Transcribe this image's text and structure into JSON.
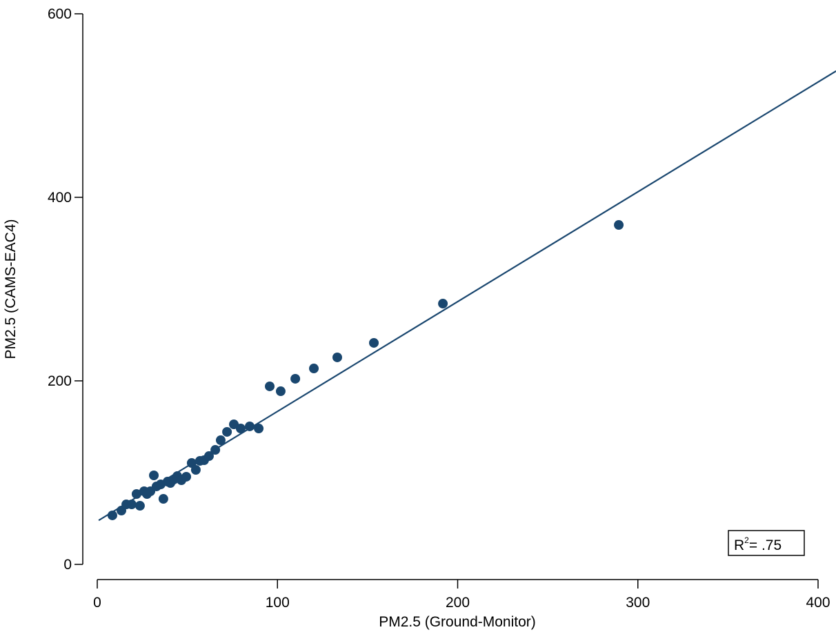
{
  "chart_data": {
    "type": "scatter",
    "xlabel": "PM2.5 (Ground-Monitor)",
    "ylabel": "PM2.5 (CAMS-EAC4)",
    "annotation": "R²= .75",
    "color": "#1a476f",
    "x": [
      8.4,
      13.4,
      16.1,
      19.1,
      21.8,
      23.7,
      26,
      27.6,
      29.5,
      31.4,
      32.9,
      35.2,
      36.7,
      39,
      40.6,
      42.5,
      44.4,
      46.7,
      49.4,
      52.4,
      54.7,
      57,
      59.3,
      62,
      65.5,
      68.5,
      72,
      75.8,
      79.6,
      84.6,
      89.6,
      95.7,
      101.8,
      109.9,
      120.2,
      133.2,
      153.5,
      191.8,
      289.4
    ],
    "values": [
      53.4,
      58.6,
      65.4,
      65.4,
      76.7,
      63.9,
      79.7,
      76.7,
      79.7,
      97,
      85,
      87.2,
      71.4,
      90.2,
      88.7,
      92.5,
      96.2,
      91.7,
      95.5,
      110.5,
      103,
      112.8,
      113.5,
      118,
      124.8,
      135.3,
      144.4,
      152.6,
      148.1,
      150.4,
      148.1,
      194,
      188.7,
      202.3,
      213.5,
      225.6,
      241.4,
      284.2,
      369.9
    ],
    "fit": {
      "type": "line",
      "color": "#1a476f",
      "x": [
        0.8,
        410
      ],
      "values": [
        48,
        537.6
      ]
    },
    "xlim": [
      0,
      410
    ],
    "ylim": [
      0,
      600
    ],
    "xticks": [
      0,
      100,
      200,
      300,
      400
    ],
    "yticks": [
      0,
      200,
      400,
      600
    ]
  }
}
